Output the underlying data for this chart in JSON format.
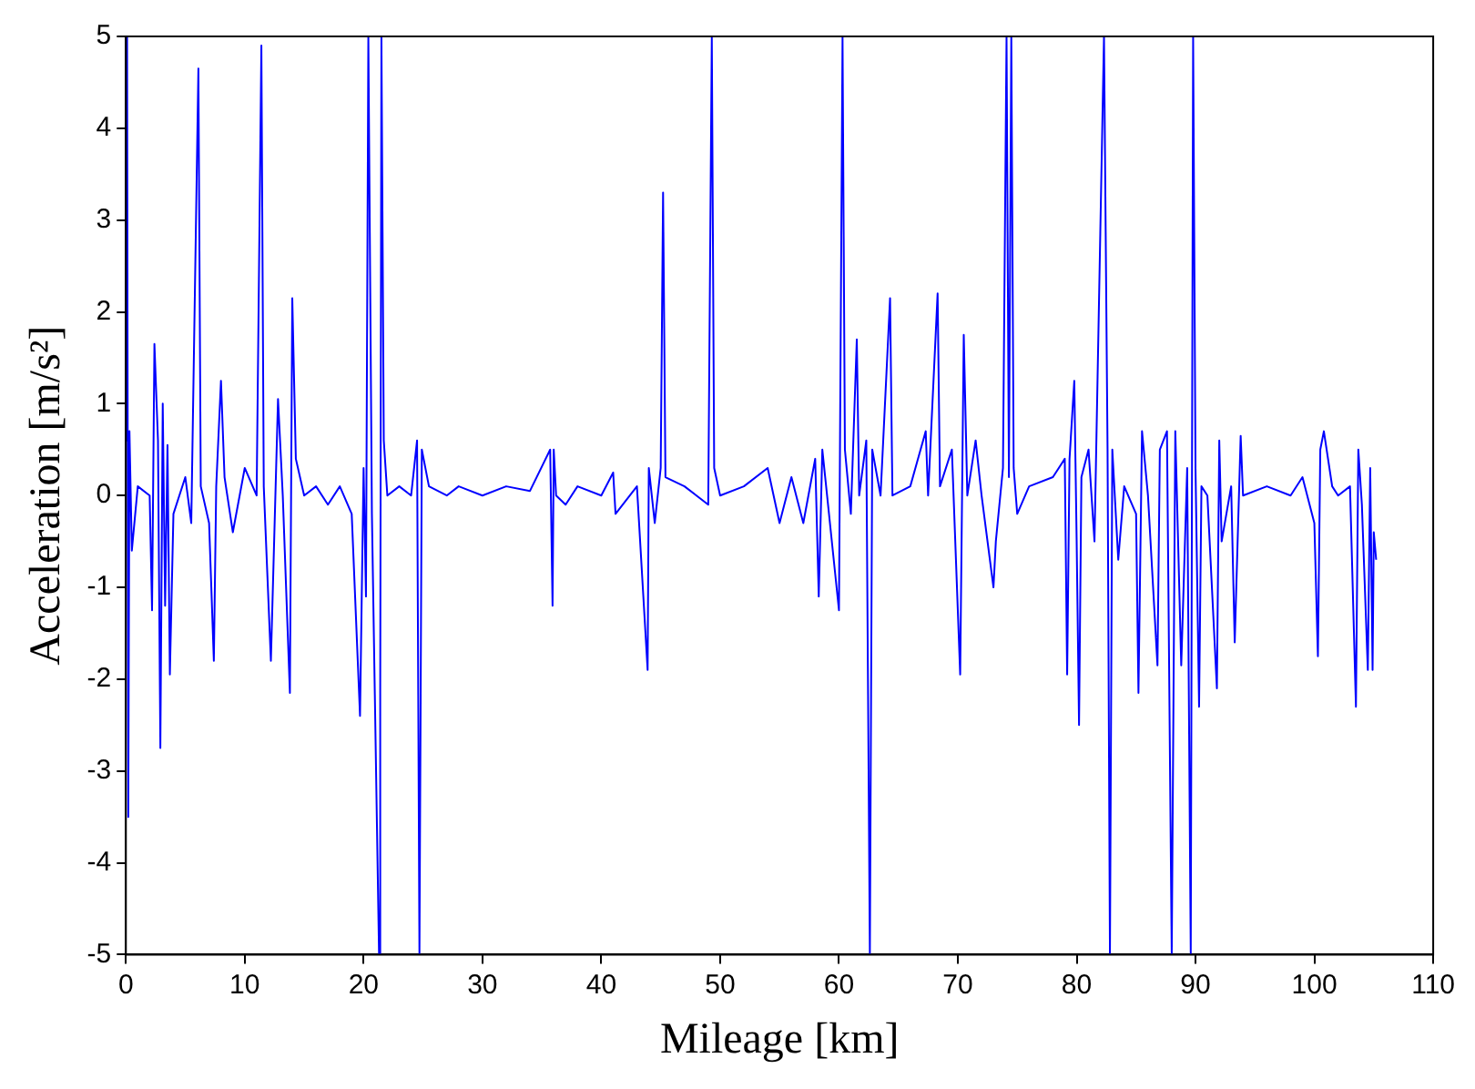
{
  "chart_data": {
    "type": "line",
    "xlabel": "Mileage [km]",
    "ylabel": "Acceleration [m/s²]",
    "xlim": [
      0,
      110
    ],
    "xticks": [
      0,
      10,
      20,
      30,
      40,
      50,
      60,
      70,
      80,
      90,
      100,
      110
    ],
    "ylim": [
      -5,
      5
    ],
    "yticks": [
      -5,
      -4,
      -3,
      -2,
      -1,
      0,
      1,
      2,
      3,
      4,
      5
    ],
    "grid": false,
    "legend": false,
    "marker": "none",
    "line_style": "solid",
    "series": [
      {
        "color": "#0000ff",
        "x": [
          0,
          0.1,
          0.2,
          0.3,
          0.5,
          1,
          2,
          2.2,
          2.4,
          2.7,
          2.9,
          3.1,
          3.3,
          3.5,
          3.7,
          4,
          5,
          5.5,
          6.1,
          6.3,
          7,
          7.4,
          7.6,
          8,
          8.3,
          9,
          10,
          11,
          11.4,
          11.6,
          12.2,
          12.8,
          13.2,
          13.8,
          14,
          14.3,
          15,
          16,
          17,
          18,
          19,
          19.7,
          20,
          20.2,
          20.4,
          20.7,
          21.3,
          21.4,
          21.5,
          21.7,
          22,
          23,
          24,
          24.5,
          24.7,
          24.9,
          25.5,
          27,
          28,
          30,
          32,
          34,
          35.7,
          35.9,
          36,
          36.2,
          37,
          38,
          40,
          41,
          41.2,
          43,
          43.9,
          44,
          44.5,
          45,
          45.2,
          45.4,
          47,
          49,
          49.3,
          49.5,
          50,
          52,
          54,
          55,
          56,
          57,
          58,
          58.3,
          58.6,
          60,
          60.3,
          60.5,
          61,
          61.5,
          61.7,
          62.3,
          62.6,
          62.8,
          63.5,
          64.3,
          64.5,
          66,
          67.3,
          67.5,
          68.3,
          68.5,
          69.5,
          70.2,
          70.5,
          70.8,
          71.5,
          72,
          73,
          73.2,
          73.8,
          74.1,
          74.3,
          74.5,
          74.7,
          75,
          76,
          78,
          79,
          79.2,
          79.4,
          79.8,
          80,
          80.2,
          80.4,
          81,
          81.5,
          82.3,
          82.6,
          82.8,
          83,
          83.5,
          84,
          85,
          85.2,
          85.5,
          86,
          86.8,
          87,
          87.6,
          88,
          88.3,
          88.8,
          89.3,
          89.6,
          89.8,
          90,
          90.3,
          90.5,
          91,
          91.8,
          92,
          92.2,
          93,
          93.3,
          93.8,
          94,
          96,
          98,
          99,
          100,
          100.3,
          100.5,
          100.8,
          101.5,
          102,
          103,
          103.5,
          103.7,
          104,
          104.5,
          104.7,
          104.9,
          105,
          105.2
        ],
        "values": [
          0.6,
          5,
          -3.5,
          0.7,
          -0.6,
          0.1,
          0,
          -1.25,
          1.65,
          0.6,
          -2.75,
          1,
          -1.2,
          0.55,
          -1.95,
          -0.2,
          0.2,
          -0.3,
          4.65,
          0.1,
          -0.3,
          -1.8,
          0.1,
          1.25,
          0.2,
          -0.4,
          0.3,
          0,
          4.9,
          0.1,
          -1.8,
          1.05,
          0,
          -2.15,
          2.15,
          0.4,
          0,
          0.1,
          -0.1,
          0.1,
          -0.2,
          -2.4,
          0.3,
          -1.1,
          5,
          -0.2,
          -5,
          -2.15,
          5,
          0.6,
          0,
          0.1,
          0,
          0.6,
          -5,
          0.5,
          0.1,
          0,
          0.1,
          0,
          0.1,
          0.05,
          0.5,
          -1.2,
          0.5,
          0,
          -0.1,
          0.1,
          0,
          0.25,
          -0.2,
          0.1,
          -1.9,
          0.3,
          -0.3,
          0.3,
          3.3,
          0.2,
          0.1,
          -0.1,
          5,
          0.3,
          0,
          0.1,
          0.3,
          -0.3,
          0.2,
          -0.3,
          0.4,
          -1.1,
          0.5,
          -1.25,
          5,
          0.5,
          -0.2,
          1.7,
          0,
          0.6,
          -5,
          0.5,
          0,
          2.15,
          0,
          0.1,
          0.7,
          0,
          2.2,
          0.1,
          0.5,
          -1.95,
          1.75,
          0,
          0.6,
          0,
          -1,
          -0.5,
          0.3,
          5,
          0.2,
          5,
          0.3,
          -0.2,
          0.1,
          0.2,
          0.4,
          -1.95,
          0.4,
          1.25,
          -0.5,
          -2.5,
          0.2,
          0.5,
          -0.5,
          5,
          0.5,
          -5,
          0.5,
          -0.7,
          0.1,
          -0.2,
          -2.15,
          0.7,
          0,
          -1.85,
          0.5,
          0.7,
          -5,
          0.7,
          -1.85,
          0.3,
          -5,
          5,
          0.3,
          -2.3,
          0.1,
          0,
          -2.1,
          0.6,
          -0.5,
          0.1,
          -1.6,
          0.65,
          0,
          0.1,
          0,
          0.2,
          -0.3,
          -1.75,
          0.5,
          0.7,
          0.1,
          0,
          0.1,
          -2.3,
          0.5,
          -0.1,
          -1.9,
          0.3,
          -1.9,
          -0.4,
          -0.7
        ]
      }
    ]
  }
}
